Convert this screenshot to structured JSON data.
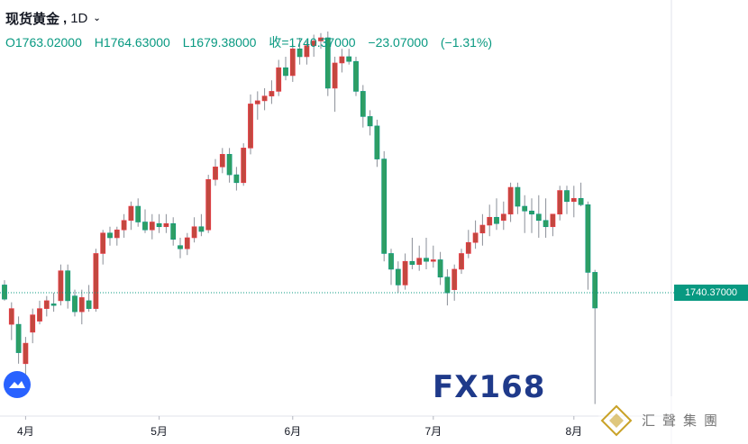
{
  "legend": {
    "symbol": "现货黄金",
    "separator": ",",
    "timeframe": "1D",
    "open": "O1763.02000",
    "high": "H1764.63000",
    "low": "L1679.38000",
    "close": "收=1740.37000",
    "change": "−23.07000",
    "change_pct": "(−1.31%)"
  },
  "price_tag": "1740.37000",
  "watermark": "FX168",
  "seal_text": "汇聲集團",
  "colors": {
    "up": "#f23645",
    "up_body": "#c2483f",
    "down": "#089981",
    "down_body": "#2e9e64",
    "wick": "#8a8f98",
    "accent": "#2962ff"
  },
  "chart_data": {
    "type": "candlestick",
    "x_ticks": [
      "4月",
      "5月",
      "6月",
      "7月",
      "8月"
    ],
    "ylim": [
      1670,
      1920
    ],
    "last_close": 1740.37,
    "grid": false,
    "candles": [
      {
        "o": 1755,
        "h": 1758,
        "l": 1745,
        "c": 1746
      },
      {
        "o": 1730,
        "h": 1744,
        "l": 1720,
        "c": 1740
      },
      {
        "o": 1730,
        "h": 1735,
        "l": 1705,
        "c": 1712
      },
      {
        "o": 1705,
        "h": 1722,
        "l": 1698,
        "c": 1718
      },
      {
        "o": 1725,
        "h": 1740,
        "l": 1718,
        "c": 1736
      },
      {
        "o": 1732,
        "h": 1745,
        "l": 1730,
        "c": 1740
      },
      {
        "o": 1740,
        "h": 1748,
        "l": 1735,
        "c": 1745
      },
      {
        "o": 1743,
        "h": 1750,
        "l": 1738,
        "c": 1742
      },
      {
        "o": 1745,
        "h": 1768,
        "l": 1742,
        "c": 1764
      },
      {
        "o": 1764,
        "h": 1768,
        "l": 1740,
        "c": 1745
      },
      {
        "o": 1748,
        "h": 1752,
        "l": 1735,
        "c": 1738
      },
      {
        "o": 1738,
        "h": 1752,
        "l": 1730,
        "c": 1747
      },
      {
        "o": 1745,
        "h": 1755,
        "l": 1738,
        "c": 1740
      },
      {
        "o": 1740,
        "h": 1778,
        "l": 1738,
        "c": 1775
      },
      {
        "o": 1775,
        "h": 1790,
        "l": 1768,
        "c": 1788
      },
      {
        "o": 1788,
        "h": 1792,
        "l": 1780,
        "c": 1785
      },
      {
        "o": 1785,
        "h": 1792,
        "l": 1780,
        "c": 1790
      },
      {
        "o": 1790,
        "h": 1800,
        "l": 1785,
        "c": 1796
      },
      {
        "o": 1796,
        "h": 1808,
        "l": 1790,
        "c": 1805
      },
      {
        "o": 1805,
        "h": 1810,
        "l": 1792,
        "c": 1795
      },
      {
        "o": 1795,
        "h": 1803,
        "l": 1788,
        "c": 1790
      },
      {
        "o": 1790,
        "h": 1800,
        "l": 1784,
        "c": 1795
      },
      {
        "o": 1794,
        "h": 1800,
        "l": 1788,
        "c": 1792
      },
      {
        "o": 1792,
        "h": 1800,
        "l": 1788,
        "c": 1794
      },
      {
        "o": 1794,
        "h": 1798,
        "l": 1780,
        "c": 1784
      },
      {
        "o": 1780,
        "h": 1785,
        "l": 1772,
        "c": 1778
      },
      {
        "o": 1778,
        "h": 1788,
        "l": 1774,
        "c": 1785
      },
      {
        "o": 1785,
        "h": 1798,
        "l": 1782,
        "c": 1792
      },
      {
        "o": 1792,
        "h": 1800,
        "l": 1786,
        "c": 1789
      },
      {
        "o": 1790,
        "h": 1825,
        "l": 1788,
        "c": 1822
      },
      {
        "o": 1822,
        "h": 1835,
        "l": 1818,
        "c": 1830
      },
      {
        "o": 1830,
        "h": 1842,
        "l": 1826,
        "c": 1838
      },
      {
        "o": 1838,
        "h": 1842,
        "l": 1820,
        "c": 1825
      },
      {
        "o": 1825,
        "h": 1830,
        "l": 1815,
        "c": 1820
      },
      {
        "o": 1820,
        "h": 1845,
        "l": 1818,
        "c": 1842
      },
      {
        "o": 1842,
        "h": 1876,
        "l": 1838,
        "c": 1870
      },
      {
        "o": 1870,
        "h": 1878,
        "l": 1860,
        "c": 1872
      },
      {
        "o": 1872,
        "h": 1880,
        "l": 1866,
        "c": 1875
      },
      {
        "o": 1875,
        "h": 1885,
        "l": 1870,
        "c": 1878
      },
      {
        "o": 1878,
        "h": 1898,
        "l": 1875,
        "c": 1893
      },
      {
        "o": 1893,
        "h": 1900,
        "l": 1885,
        "c": 1888
      },
      {
        "o": 1888,
        "h": 1908,
        "l": 1884,
        "c": 1905
      },
      {
        "o": 1905,
        "h": 1912,
        "l": 1895,
        "c": 1900
      },
      {
        "o": 1900,
        "h": 1910,
        "l": 1895,
        "c": 1907
      },
      {
        "o": 1907,
        "h": 1914,
        "l": 1900,
        "c": 1910
      },
      {
        "o": 1910,
        "h": 1915,
        "l": 1905,
        "c": 1912
      },
      {
        "o": 1912,
        "h": 1916,
        "l": 1875,
        "c": 1880
      },
      {
        "o": 1880,
        "h": 1900,
        "l": 1865,
        "c": 1896
      },
      {
        "o": 1896,
        "h": 1905,
        "l": 1890,
        "c": 1900
      },
      {
        "o": 1900,
        "h": 1905,
        "l": 1895,
        "c": 1897
      },
      {
        "o": 1897,
        "h": 1900,
        "l": 1875,
        "c": 1878
      },
      {
        "o": 1878,
        "h": 1882,
        "l": 1855,
        "c": 1862
      },
      {
        "o": 1862,
        "h": 1866,
        "l": 1850,
        "c": 1856
      },
      {
        "o": 1856,
        "h": 1860,
        "l": 1830,
        "c": 1835
      },
      {
        "o": 1835,
        "h": 1840,
        "l": 1770,
        "c": 1775
      },
      {
        "o": 1775,
        "h": 1778,
        "l": 1755,
        "c": 1765
      },
      {
        "o": 1765,
        "h": 1770,
        "l": 1750,
        "c": 1755
      },
      {
        "o": 1755,
        "h": 1775,
        "l": 1752,
        "c": 1770
      },
      {
        "o": 1770,
        "h": 1785,
        "l": 1765,
        "c": 1768
      },
      {
        "o": 1768,
        "h": 1780,
        "l": 1764,
        "c": 1772
      },
      {
        "o": 1772,
        "h": 1785,
        "l": 1765,
        "c": 1770
      },
      {
        "o": 1770,
        "h": 1780,
        "l": 1766,
        "c": 1771
      },
      {
        "o": 1771,
        "h": 1776,
        "l": 1755,
        "c": 1760
      },
      {
        "o": 1760,
        "h": 1765,
        "l": 1742,
        "c": 1750
      },
      {
        "o": 1752,
        "h": 1768,
        "l": 1745,
        "c": 1765
      },
      {
        "o": 1765,
        "h": 1778,
        "l": 1762,
        "c": 1775
      },
      {
        "o": 1775,
        "h": 1790,
        "l": 1772,
        "c": 1782
      },
      {
        "o": 1782,
        "h": 1796,
        "l": 1778,
        "c": 1788
      },
      {
        "o": 1788,
        "h": 1800,
        "l": 1780,
        "c": 1793
      },
      {
        "o": 1793,
        "h": 1806,
        "l": 1786,
        "c": 1798
      },
      {
        "o": 1798,
        "h": 1810,
        "l": 1790,
        "c": 1794
      },
      {
        "o": 1796,
        "h": 1808,
        "l": 1790,
        "c": 1800
      },
      {
        "o": 1800,
        "h": 1820,
        "l": 1795,
        "c": 1817
      },
      {
        "o": 1817,
        "h": 1820,
        "l": 1800,
        "c": 1805
      },
      {
        "o": 1805,
        "h": 1812,
        "l": 1788,
        "c": 1802
      },
      {
        "o": 1802,
        "h": 1810,
        "l": 1788,
        "c": 1800
      },
      {
        "o": 1800,
        "h": 1812,
        "l": 1785,
        "c": 1796
      },
      {
        "o": 1796,
        "h": 1810,
        "l": 1785,
        "c": 1792
      },
      {
        "o": 1792,
        "h": 1800,
        "l": 1786,
        "c": 1800
      },
      {
        "o": 1800,
        "h": 1818,
        "l": 1796,
        "c": 1815
      },
      {
        "o": 1815,
        "h": 1818,
        "l": 1800,
        "c": 1808
      },
      {
        "o": 1808,
        "h": 1818,
        "l": 1798,
        "c": 1810
      },
      {
        "o": 1810,
        "h": 1820,
        "l": 1805,
        "c": 1806
      },
      {
        "o": 1806,
        "h": 1808,
        "l": 1752,
        "c": 1763
      },
      {
        "o": 1763.02,
        "h": 1764.63,
        "l": 1679.38,
        "c": 1740.37
      }
    ]
  }
}
